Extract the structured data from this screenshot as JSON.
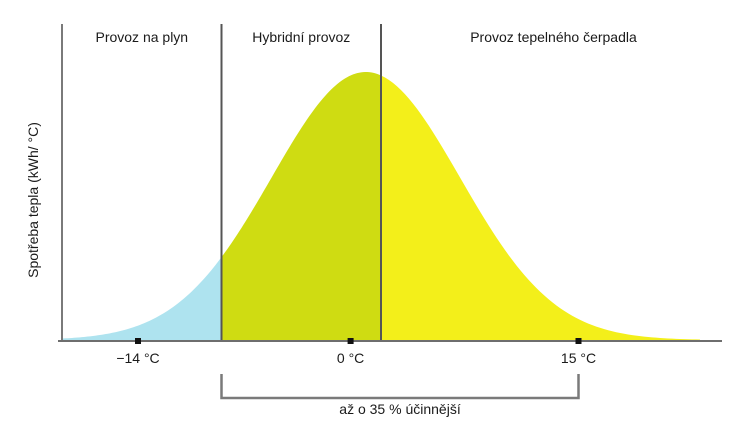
{
  "chart_data": {
    "type": "area",
    "ylabel": "Spotřeba tepla (kWh/ °C)",
    "xlabel": "",
    "xlim": [
      -19,
      23
    ],
    "ylim": [
      0,
      1
    ],
    "grid": false,
    "x_ticks": [
      {
        "value": -14,
        "label": "−14 °C"
      },
      {
        "value": 0,
        "label": "0 °C"
      },
      {
        "value": 15,
        "label": "15 °C"
      }
    ],
    "zone_boundaries": [
      -8.5,
      2
    ],
    "zones": [
      {
        "name": "Provoz na plyn",
        "from": -19,
        "to": -8.5,
        "color": "#aee3ef"
      },
      {
        "name": "Hybridní provoz",
        "from": -8.5,
        "to": 2,
        "color": "#cfdc12"
      },
      {
        "name": "Provoz tepelného čerpadla",
        "from": 2,
        "to": 23,
        "color": "#f3ef1a"
      }
    ],
    "curve": {
      "shape": "normal",
      "peak_x": 1,
      "spread": 6.2,
      "peak_value": 1
    },
    "annotation": {
      "label": "až o 35 % účinnější",
      "from": -8.5,
      "to": 15
    }
  }
}
